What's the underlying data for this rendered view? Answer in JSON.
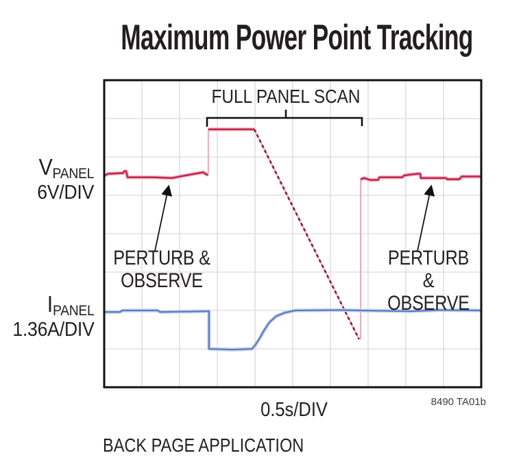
{
  "title": "Maximum Power Point Tracking",
  "plot_annotations": {
    "full_panel_scan": "FULL PANEL SCAN",
    "perturb_observe": {
      "line1": "PERTURB &",
      "line2": "OBSERVE"
    }
  },
  "labels": {
    "v_main": "V",
    "v_sub": "PANEL",
    "v_scale": "6V/DIV",
    "i_main": "I",
    "i_sub": "PANEL",
    "i_scale": "1.36A/DIV",
    "x_scale": "0.5s/DIV"
  },
  "footer": {
    "figure_ref": "8490 TA01b",
    "caption": "BACK PAGE APPLICATION"
  },
  "chart_data": {
    "type": "line",
    "title": "Maximum Power Point Tracking",
    "xlabel": "0.5s/DIV",
    "x_unit": "s",
    "time_per_div_s": 0.5,
    "x_divisions": 10,
    "y_divisions": 8,
    "x_range_s": [
      0,
      5
    ],
    "grid": true,
    "y_unit_note": "levels given in screen divisions from plot bottom; no absolute reference shown",
    "colors": {
      "v_trace": "#bf2045",
      "v_trace_halo": "#f2b3c6",
      "v_dash": "#8c1832",
      "v_thin": "#ee9ab4",
      "i_trace": "#5b79c4",
      "i_trace_halo": "#c9d7ee",
      "grid": "#d9d9d9",
      "frame": "#111111"
    },
    "series": [
      {
        "name": "V_PANEL",
        "scale_per_div": "6V",
        "segments": [
          {
            "style": "solid",
            "points": [
              [
                0.0,
                5.51
              ],
              [
                0.05,
                5.56
              ],
              [
                0.25,
                5.58
              ],
              [
                0.27,
                5.63
              ],
              [
                0.29,
                5.63
              ],
              [
                0.31,
                5.47
              ],
              [
                0.66,
                5.47
              ],
              [
                0.9,
                5.45
              ],
              [
                1.0,
                5.49
              ],
              [
                1.31,
                5.6
              ],
              [
                1.36,
                5.54
              ],
              [
                1.38,
                5.54
              ]
            ]
          },
          {
            "style": "thin",
            "points": [
              [
                1.38,
                5.54
              ],
              [
                1.38,
                6.72
              ]
            ]
          },
          {
            "style": "solid",
            "points": [
              [
                1.38,
                6.72
              ],
              [
                1.99,
                6.72
              ]
            ]
          },
          {
            "style": "dashed",
            "points": [
              [
                1.99,
                6.72
              ],
              [
                3.38,
                1.25
              ]
            ]
          },
          {
            "style": "thin",
            "points": [
              [
                3.4,
                1.25
              ],
              [
                3.4,
                5.42
              ]
            ]
          },
          {
            "style": "solid",
            "points": [
              [
                3.4,
                5.42
              ],
              [
                3.45,
                5.45
              ],
              [
                3.53,
                5.4
              ],
              [
                3.63,
                5.4
              ],
              [
                3.65,
                5.47
              ],
              [
                3.95,
                5.47
              ],
              [
                3.98,
                5.52
              ],
              [
                4.15,
                5.56
              ],
              [
                4.19,
                5.56
              ],
              [
                4.2,
                5.45
              ],
              [
                4.53,
                5.45
              ],
              [
                4.55,
                5.42
              ],
              [
                4.71,
                5.42
              ],
              [
                4.74,
                5.49
              ],
              [
                5.0,
                5.49
              ]
            ]
          }
        ]
      },
      {
        "name": "I_PANEL",
        "scale_per_div": "1.36A",
        "segments": [
          {
            "style": "solid",
            "points": [
              [
                0.0,
                1.96
              ],
              [
                0.21,
                1.96
              ],
              [
                0.24,
                2.0
              ],
              [
                0.71,
                2.0
              ],
              [
                0.74,
                1.96
              ],
              [
                1.35,
                1.98
              ],
              [
                1.39,
                1.98
              ],
              [
                1.39,
                1.0
              ],
              [
                1.7,
                0.98
              ],
              [
                1.96,
                1.0
              ],
              [
                2.0,
                1.09
              ],
              [
                2.06,
                1.27
              ],
              [
                2.12,
                1.48
              ],
              [
                2.19,
                1.69
              ],
              [
                2.28,
                1.85
              ],
              [
                2.39,
                1.94
              ],
              [
                2.53,
                2.0
              ],
              [
                3.16,
                2.01
              ],
              [
                3.4,
                2.0
              ],
              [
                4.07,
                1.98
              ],
              [
                4.44,
                2.01
              ],
              [
                5.0,
                2.0
              ]
            ]
          }
        ]
      }
    ],
    "annotations": [
      {
        "label": "FULL PANEL SCAN",
        "t_start_s": 1.36,
        "t_end_s": 3.42
      },
      {
        "label": "PERTURB & OBSERVE",
        "applies_to": "t < 1.36s and t > 3.42s"
      }
    ]
  }
}
